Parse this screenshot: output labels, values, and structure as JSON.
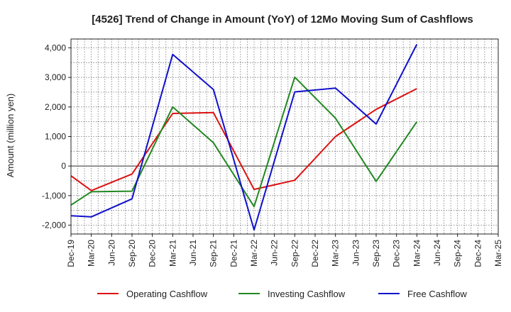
{
  "chart_data": {
    "type": "line",
    "title": "[4526]  Trend of Change in Amount (YoY) of 12Mo Moving Sum of Cashflows",
    "xlabel": "",
    "ylabel": "Amount (million yen)",
    "ylim": [
      -2300,
      4300
    ],
    "yticks": [
      4000,
      3000,
      2000,
      1000,
      0,
      -1000,
      -2000
    ],
    "ytick_labels": [
      "4,000",
      "3,000",
      "2,000",
      "1,000",
      "0",
      "-1,000",
      "-2,000"
    ],
    "categories": [
      "Dec-19",
      "Mar-20",
      "Jun-20",
      "Sep-20",
      "Dec-20",
      "Mar-21",
      "Jun-21",
      "Sep-21",
      "Dec-21",
      "Mar-22",
      "Jun-22",
      "Sep-22",
      "Dec-22",
      "Mar-23",
      "Jun-23",
      "Sep-23",
      "Dec-23",
      "Mar-24",
      "Jun-24",
      "Sep-24",
      "Dec-24",
      "Mar-25"
    ],
    "grid": true,
    "legend_position": "bottom",
    "series": [
      {
        "name": "Operating Cashflow",
        "color": "#dd1111",
        "values": [
          -330,
          -830,
          null,
          -270,
          null,
          1780,
          null,
          1810,
          null,
          -790,
          null,
          -480,
          null,
          1000,
          null,
          1920,
          null,
          2620,
          null,
          null,
          null,
          null
        ]
      },
      {
        "name": "Investing Cashflow",
        "color": "#228822",
        "values": [
          -1320,
          -870,
          null,
          -850,
          null,
          2000,
          null,
          790,
          null,
          -1370,
          null,
          3010,
          null,
          1620,
          null,
          -520,
          null,
          1500,
          null,
          null,
          null,
          null
        ]
      },
      {
        "name": "Free Cashflow",
        "color": "#1111cc",
        "values": [
          -1680,
          -1720,
          null,
          -1110,
          null,
          3780,
          null,
          2590,
          null,
          -2160,
          null,
          2510,
          null,
          2640,
          null,
          1420,
          null,
          4120,
          null,
          null,
          null,
          null
        ]
      }
    ]
  }
}
